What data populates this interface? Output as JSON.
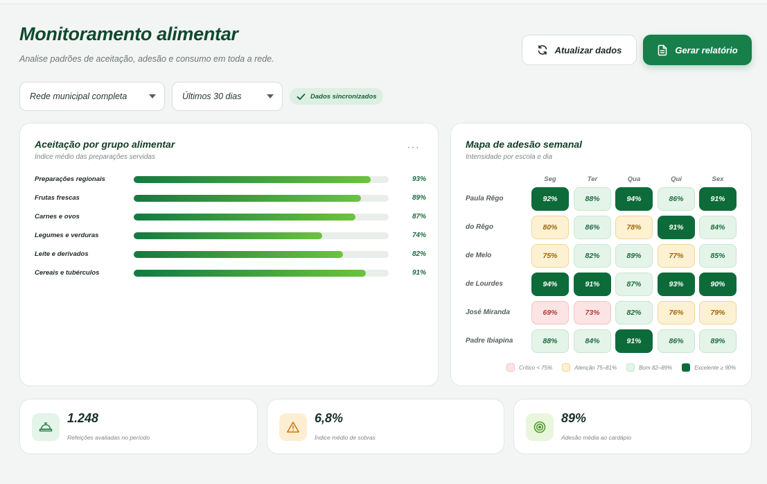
{
  "header": {
    "title": "Monitoramento alimentar",
    "subtitle": "Analise padrões de aceitação, adesão e consumo em toda a rede.",
    "refresh_label": "Atualizar dados",
    "report_label": "Gerar relatório"
  },
  "filters": {
    "network": "Rede municipal completa",
    "period": "Últimos 30 dias",
    "sync_status": "Dados sincronizados"
  },
  "acceptance": {
    "title": "Aceitação por grupo alimentar",
    "subtitle": "Índice médio das preparações servidas",
    "more_icon": "more-horizontal-icon",
    "items": [
      {
        "label": "Preparações regionais",
        "value": 93,
        "text": "93%"
      },
      {
        "label": "Frutas frescas",
        "value": 89,
        "text": "89%"
      },
      {
        "label": "Carnes e ovos",
        "value": 87,
        "text": "87%"
      },
      {
        "label": "Legumes e verduras",
        "value": 74,
        "text": "74%"
      },
      {
        "label": "Leite e derivados",
        "value": 82,
        "text": "82%"
      },
      {
        "label": "Cereais e tubérculos",
        "value": 91,
        "text": "91%"
      }
    ]
  },
  "heatmap": {
    "title": "Mapa de adesão semanal",
    "subtitle": "Intensidade por escola e dia",
    "days": [
      "Seg",
      "Ter",
      "Qua",
      "Qui",
      "Sex"
    ],
    "rows": [
      {
        "school": "Paula Rêgo",
        "cells": [
          "92%",
          "88%",
          "94%",
          "86%",
          "91%"
        ],
        "levels": [
          "exc",
          "bom",
          "exc",
          "bom",
          "exc"
        ]
      },
      {
        "school": "do Rêgo",
        "cells": [
          "80%",
          "86%",
          "78%",
          "91%",
          "84%"
        ],
        "levels": [
          "aten",
          "bom",
          "aten",
          "exc",
          "bom"
        ]
      },
      {
        "school": "de Melo",
        "cells": [
          "75%",
          "82%",
          "89%",
          "77%",
          "85%"
        ],
        "levels": [
          "aten",
          "bom",
          "bom",
          "aten",
          "bom"
        ]
      },
      {
        "school": "de Lourdes",
        "cells": [
          "94%",
          "91%",
          "87%",
          "93%",
          "90%"
        ],
        "levels": [
          "exc",
          "exc",
          "bom",
          "exc",
          "exc"
        ]
      },
      {
        "school": "José Miranda",
        "cells": [
          "69%",
          "73%",
          "82%",
          "76%",
          "79%"
        ],
        "levels": [
          "crit",
          "crit",
          "bom",
          "aten",
          "aten"
        ]
      },
      {
        "school": "Padre Ibiapina",
        "cells": [
          "88%",
          "84%",
          "91%",
          "86%",
          "89%"
        ],
        "levels": [
          "bom",
          "bom",
          "exc",
          "bom",
          "bom"
        ]
      }
    ],
    "legend": [
      {
        "label": "Crítico < 75%",
        "level": "crit"
      },
      {
        "label": "Atenção 75–81%",
        "level": "aten"
      },
      {
        "label": "Bom 82–89%",
        "level": "bom"
      },
      {
        "label": "Excelente ≥ 90%",
        "level": "exc"
      }
    ]
  },
  "stats": [
    {
      "value": "1.248",
      "label": "Refeições avaliadas no período",
      "icon": "food-tray-icon"
    },
    {
      "value": "6,8%",
      "label": "Índice médio de sobras",
      "icon": "warning-icon"
    },
    {
      "value": "89%",
      "label": "Adesão média ao cardápio",
      "icon": "target-icon"
    }
  ],
  "colors": {
    "brand": "#17804a",
    "excellent": "#0d6b3a",
    "good": "#e4f4e8",
    "attention": "#fdf1d3",
    "critical": "#fde4e4"
  }
}
